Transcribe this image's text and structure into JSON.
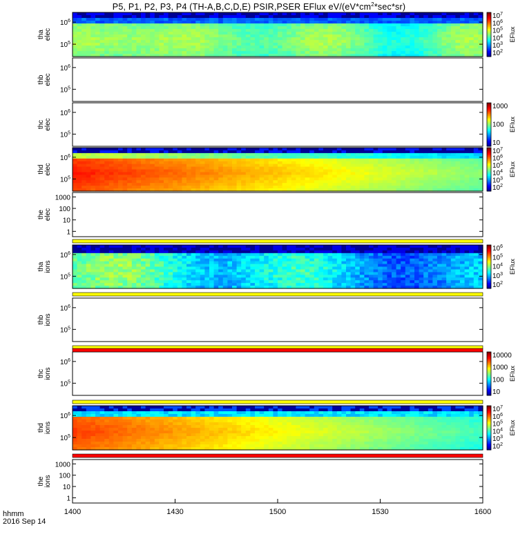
{
  "title": {
    "main": "P5, P1, P2, P3, P4 (TH-A,B,C,D,E) PSIR,PSER EFlux eV/(eV*cm",
    "sup": "2",
    "tail": "*sec*sr)"
  },
  "x_axis": {
    "label_line1": "hhmm",
    "label_line2": "2016 Sep 14",
    "ticks": [
      "1400",
      "1430",
      "1500",
      "1530",
      "1600"
    ]
  },
  "colors": {
    "flag_yellow": "#ffff00",
    "flag_red": "#ff0000",
    "nodata_white": "#ffffff"
  },
  "chart_data": [
    {
      "type": "heatmap",
      "probe": "tha",
      "species": "elec",
      "label": [
        "tha",
        "elec"
      ],
      "y_scale": "log",
      "y_ticks": [
        "10^6",
        "10^5"
      ],
      "has_data": true,
      "profile": "tha_elec",
      "colorbar": {
        "title": "EFlux",
        "scale": "log",
        "ticks": [
          "10^7",
          "10^6",
          "10^5",
          "10^4",
          "10^3",
          "10^2"
        ]
      }
    },
    {
      "type": "heatmap",
      "probe": "thb",
      "species": "elec",
      "label": [
        "thb",
        "elec"
      ],
      "y_scale": "log",
      "y_ticks": [
        "10^6",
        "10^5"
      ],
      "has_data": false
    },
    {
      "type": "heatmap",
      "probe": "thc",
      "species": "elec",
      "label": [
        "thc",
        "elec"
      ],
      "y_scale": "log",
      "y_ticks": [
        "10^6",
        "10^5"
      ],
      "has_data": false,
      "colorbar": {
        "title": "EFlux",
        "scale": "log",
        "ticks": [
          "1000",
          "100",
          "10"
        ]
      }
    },
    {
      "type": "heatmap",
      "probe": "thd",
      "species": "elec",
      "label": [
        "thd",
        "elec"
      ],
      "y_scale": "log",
      "y_ticks": [
        "10^6",
        "10^5"
      ],
      "has_data": true,
      "profile": "thd_elec",
      "colorbar": {
        "title": "EFlux",
        "scale": "log",
        "ticks": [
          "10^7",
          "10^6",
          "10^5",
          "10^4",
          "10^3",
          "10^2"
        ]
      }
    },
    {
      "type": "heatmap",
      "probe": "the",
      "species": "elec",
      "label": [
        "the",
        "elec"
      ],
      "y_scale": "log",
      "y_ticks": [
        "1000",
        "100",
        "10",
        "1"
      ],
      "has_data": false
    },
    {
      "type": "heatmap",
      "probe": "tha",
      "species": "ions",
      "label": [
        "tha",
        "ions"
      ],
      "y_scale": "log",
      "y_ticks": [
        "10^6",
        "10^5"
      ],
      "has_data": true,
      "profile": "tha_ions",
      "colorbar": {
        "title": "EFlux",
        "scale": "log",
        "ticks": [
          "10^6",
          "10^5",
          "10^4",
          "10^3",
          "10^2"
        ]
      }
    },
    {
      "type": "heatmap",
      "probe": "thb",
      "species": "ions",
      "label": [
        "thb",
        "ions"
      ],
      "y_scale": "log",
      "y_ticks": [
        "10^6",
        "10^5"
      ],
      "has_data": false
    },
    {
      "type": "heatmap",
      "probe": "thc",
      "species": "ions",
      "label": [
        "thc",
        "ions"
      ],
      "y_scale": "log",
      "y_ticks": [
        "10^6",
        "10^5"
      ],
      "has_data": false,
      "colorbar": {
        "title": "EFlux",
        "scale": "log",
        "ticks": [
          "10000",
          "1000",
          "100",
          "10"
        ]
      }
    },
    {
      "type": "heatmap",
      "probe": "thd",
      "species": "ions",
      "label": [
        "thd",
        "ions"
      ],
      "y_scale": "log",
      "y_ticks": [
        "10^6",
        "10^5"
      ],
      "has_data": true,
      "profile": "thd_ions",
      "colorbar": {
        "title": "EFlux",
        "scale": "log",
        "ticks": [
          "10^7",
          "10^6",
          "10^5",
          "10^4",
          "10^3",
          "10^2"
        ]
      }
    },
    {
      "type": "heatmap",
      "probe": "the",
      "species": "ions",
      "label": [
        "the",
        "ions"
      ],
      "y_scale": "log",
      "y_ticks": [
        "1000",
        "100",
        "10",
        "1"
      ],
      "has_data": false
    }
  ],
  "flag_bars": [
    "yellow",
    "yellow",
    "yellow",
    "red",
    "yellow",
    "red"
  ]
}
